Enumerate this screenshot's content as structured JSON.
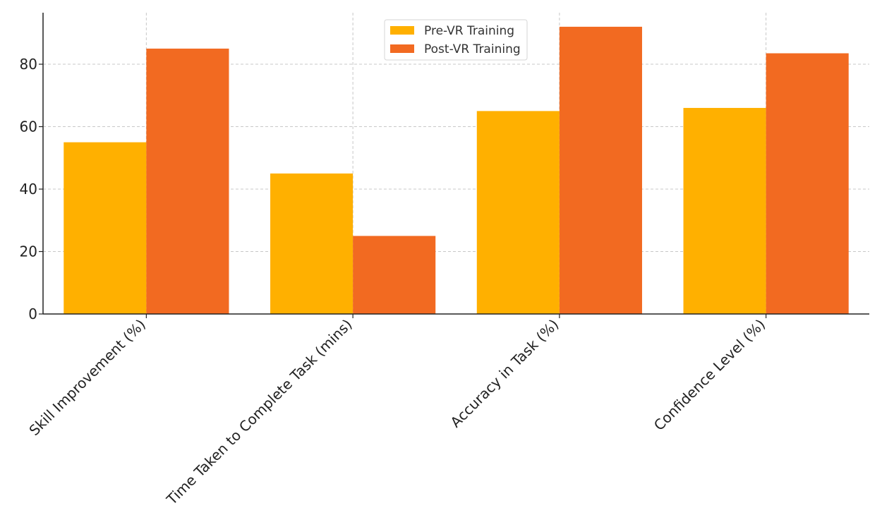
{
  "chart_data": {
    "type": "bar",
    "categories": [
      "Skill Improvement (%)",
      "Time Taken to Complete Task (mins)",
      "Accuracy in Task (%)",
      "Confidence Level (%)"
    ],
    "series": [
      {
        "name": "Pre-VR Training",
        "color": "#FFB000",
        "values": [
          55,
          45,
          65,
          66
        ]
      },
      {
        "name": "Post-VR Training",
        "color": "#F26A21",
        "values": [
          85,
          25,
          92,
          83.5
        ]
      }
    ],
    "title": "",
    "xlabel": "",
    "ylabel": "",
    "ylim": [
      0,
      96.5
    ],
    "yticks": [
      0,
      20,
      40,
      60,
      80
    ],
    "grid": true,
    "legend_position": "top-center"
  }
}
